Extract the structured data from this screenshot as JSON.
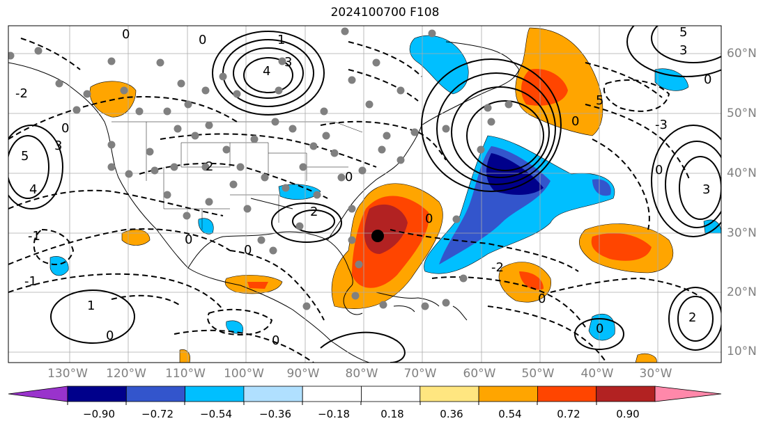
{
  "title": "2024100700 F108",
  "map": {
    "lat_labels": [
      "60°N",
      "50°N",
      "40°N",
      "30°N",
      "20°N",
      "10°N"
    ],
    "lon_labels": [
      "130°W",
      "120°W",
      "110°W",
      "100°W",
      "90°W",
      "80°W",
      "70°W",
      "60°W",
      "50°W",
      "40°W",
      "30°W"
    ],
    "projection_extent": {
      "lon_min": -140,
      "lon_max": -20,
      "lat_min": 7,
      "lat_max": 65
    },
    "contour_labels": [
      "0",
      "1",
      "2",
      "3",
      "4",
      "5",
      "-1",
      "-2",
      "-3"
    ],
    "storm_marker": {
      "lon": -78,
      "lat": 29,
      "color": "#000000"
    }
  },
  "colorbar": {
    "ticks": [
      "−0.90",
      "−0.72",
      "−0.54",
      "−0.36",
      "−0.18",
      "0.18",
      "0.36",
      "0.54",
      "0.72",
      "0.90"
    ],
    "colors": [
      "#9933cc",
      "#00008b",
      "#3355cc",
      "#00bfff",
      "#b0e0ff",
      "#ffffff",
      "#ffe680",
      "#ffa500",
      "#ff4500",
      "#b22222",
      "#ff88aa"
    ]
  }
}
